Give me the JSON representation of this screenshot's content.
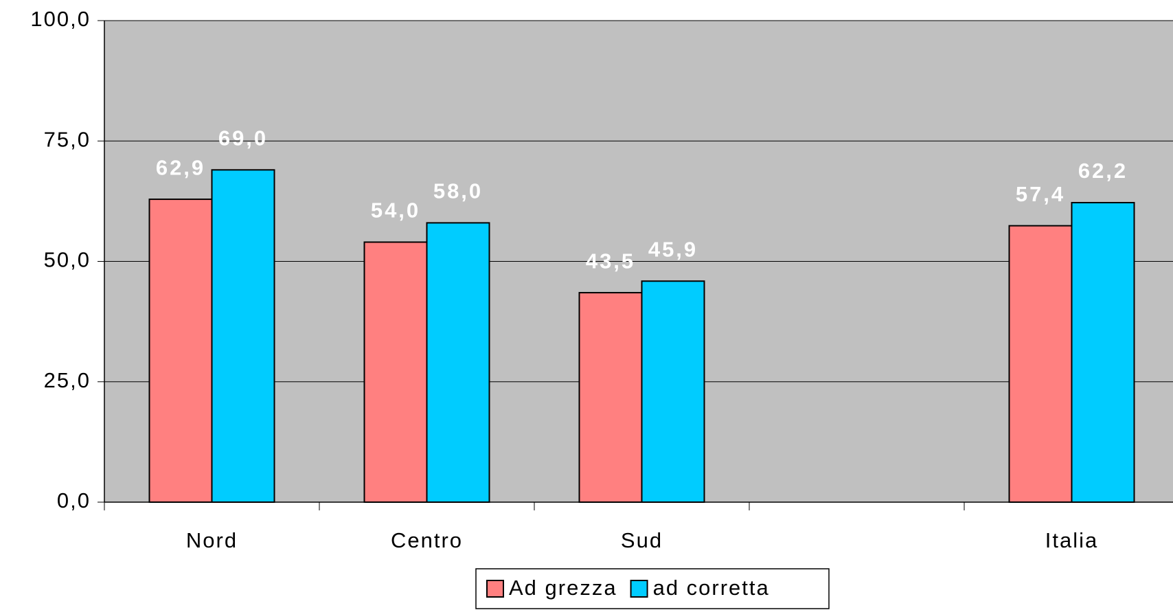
{
  "chart_data": {
    "type": "bar",
    "categories": [
      "Nord",
      "Centro",
      "Sud",
      null,
      "Italia"
    ],
    "series": [
      {
        "name": "Ad grezza",
        "color": "#ff8080",
        "values": [
          62.9,
          54.0,
          43.5,
          null,
          57.4
        ],
        "value_labels": [
          "62,9",
          "54,0",
          "43,5",
          null,
          "57,4"
        ]
      },
      {
        "name": "ad corretta",
        "color": "#00ccff",
        "values": [
          69.0,
          58.0,
          45.9,
          null,
          62.2
        ],
        "value_labels": [
          "69,0",
          "58,0",
          "45,9",
          null,
          "62,2"
        ]
      }
    ],
    "ylim": [
      0,
      100
    ],
    "yticks": [
      {
        "value": 0,
        "label": "0,0"
      },
      {
        "value": 25,
        "label": "25,0"
      },
      {
        "value": 50,
        "label": "50,0"
      },
      {
        "value": 75,
        "label": "75,0"
      },
      {
        "value": 100,
        "label": "100,0"
      }
    ],
    "grid": true,
    "legend": "bottom"
  }
}
